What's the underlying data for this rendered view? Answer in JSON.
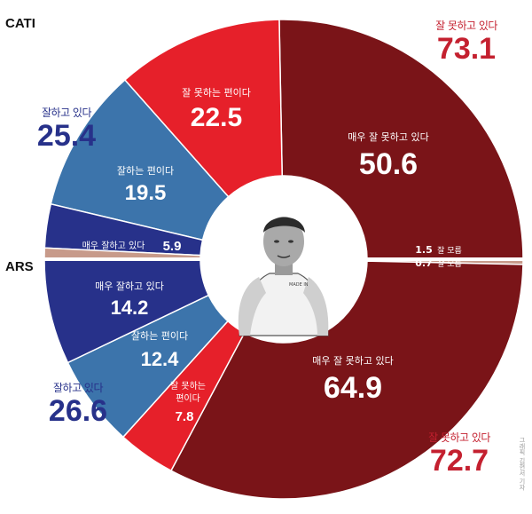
{
  "labels": {
    "cati": "CATI",
    "ars": "ARS"
  },
  "colors": {
    "very_bad": "#7a1418",
    "somewhat_bad": "#e6202a",
    "somewhat_good": "#3c74ab",
    "very_good": "#27318a",
    "unknown": "#c79a8a",
    "dark_red_text": "#c4202f",
    "blue_text": "#27318a"
  },
  "chart_data": [
    {
      "type": "pie",
      "title": "CATI",
      "slices": [
        {
          "label": "매우 잘 못하고 있다",
          "value": 50.6,
          "text": "50.6"
        },
        {
          "label": "잘 못하는 편이다",
          "value": 22.5,
          "text": "22.5"
        },
        {
          "label": "잘하는 편이다",
          "value": 19.5,
          "text": "19.5"
        },
        {
          "label": "매우 잘하고 있다",
          "value": 5.9,
          "text": "5.9"
        },
        {
          "label": "잘 모름",
          "value": 1.5,
          "text": "1.5"
        }
      ],
      "totals": {
        "bad": {
          "label": "잘 못하고 있다",
          "value": "73.1"
        },
        "good": {
          "label": "잘하고 있다",
          "value": "25.4"
        }
      }
    },
    {
      "type": "pie",
      "title": "ARS",
      "slices": [
        {
          "label": "잘 모름",
          "value": 0.7,
          "text": "0.7"
        },
        {
          "label": "매우 잘 못하고 있다",
          "value": 64.9,
          "text": "64.9"
        },
        {
          "label": "잘 못하는 편이다",
          "value": 7.8,
          "text": "7.8"
        },
        {
          "label": "잘하는 편이다",
          "value": 12.4,
          "text": "12.4"
        },
        {
          "label": "매우 잘하고 있다",
          "value": 14.2,
          "text": "14.2"
        }
      ],
      "totals": {
        "bad": {
          "label": "잘 못하고 있다",
          "value": "72.7"
        },
        "good": {
          "label": "잘하고 있다",
          "value": "26.6"
        }
      }
    }
  ],
  "texts": {
    "cati_bad_total_label": "잘 못하고 있다",
    "cati_bad_total": "73.1",
    "cati_good_total_label": "잘하고 있다",
    "cati_good_total": "25.4",
    "ars_bad_total_label": "잘 못하고 있다",
    "ars_bad_total": "72.7",
    "ars_good_total_label": "잘하고 있다",
    "ars_good_total": "26.6",
    "cati_very_bad_label": "매우 잘 못하고 있다",
    "cati_very_bad": "50.6",
    "cati_somewhat_bad_label": "잘 못하는 편이다",
    "cati_somewhat_bad": "22.5",
    "cati_somewhat_good_label": "잘하는 편이다",
    "cati_somewhat_good": "19.5",
    "cati_very_good_label": "매우 잘하고 있다",
    "cati_very_good": "5.9",
    "cati_unknown": "1.5",
    "unknown_label": "잘 모름",
    "ars_unknown": "0.7",
    "ars_very_bad_label": "매우 잘 못하고 있다",
    "ars_very_bad": "64.9",
    "ars_somewhat_bad_label_1": "잘 못하는",
    "ars_somewhat_bad_label_2": "편이다",
    "ars_somewhat_bad": "7.8",
    "ars_somewhat_good_label": "잘하는 편이다",
    "ars_somewhat_good": "12.4",
    "ars_very_good_label": "매우 잘하고 있다",
    "ars_very_good": "14.2",
    "shirt_text": "MADE IN",
    "credit": "그래픽 김현서 기자"
  }
}
